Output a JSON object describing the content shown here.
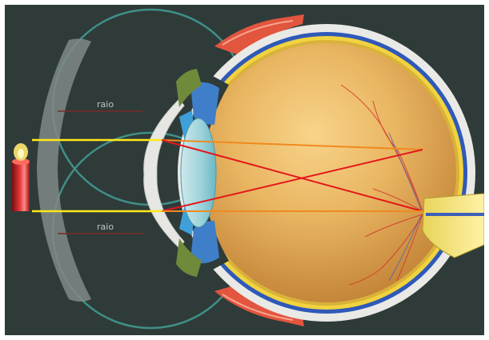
{
  "diagram": {
    "labels": {
      "top_radius": "raio",
      "bottom_radius": "raio"
    },
    "colors": {
      "background": "#2f3b39",
      "circle_stroke": "#3f8f87",
      "lens_shadow": "#7f8a88",
      "ray_yellow": "#ffe81a",
      "ray_red": "#e4161a",
      "eye_inner": "#e7b35f",
      "sclera": "#e9e9e6",
      "retina_yellow": "#f1d33f",
      "choroid_blue": "#2f59b8"
    }
  }
}
